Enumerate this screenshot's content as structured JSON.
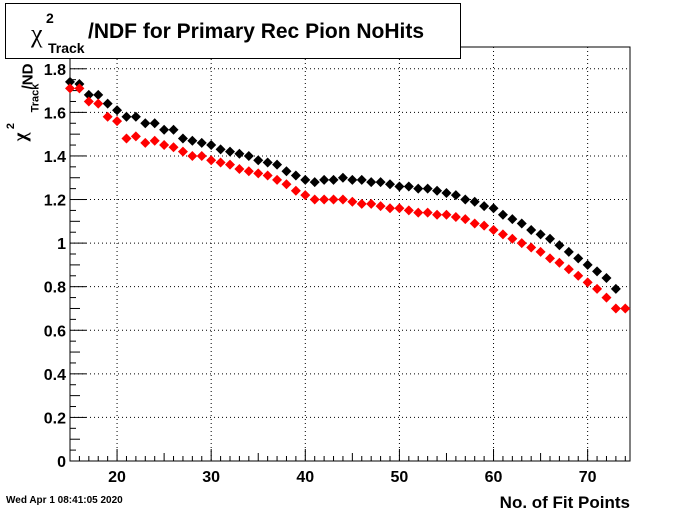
{
  "title": {
    "symbol": "χ",
    "superscript": "2",
    "subscript": "Track",
    "text": "/NDF for Primary Rec Pion NoHits"
  },
  "ylabel": {
    "symbol": "χ",
    "superscript": "2",
    "subscript": "Track",
    "text": "/ND"
  },
  "timestamp": "Wed Apr  1 08:41:05 2020",
  "chart_data": {
    "type": "scatter",
    "title": "χ²_Track/NDF for Primary Rec Pion NoHits",
    "xlabel": "No. of Fit Points",
    "ylabel": "χ²_Track/ND",
    "xlim": [
      15,
      74.5
    ],
    "ylim": [
      0,
      1.9
    ],
    "grid": true,
    "x_ticks": [
      20,
      30,
      40,
      50,
      60,
      70
    ],
    "y_ticks": [
      0,
      0.2,
      0.4,
      0.6,
      0.8,
      1,
      1.2,
      1.4,
      1.6,
      1.8
    ],
    "x_tick_labels": [
      "20",
      "30",
      "40",
      "50",
      "60",
      "70"
    ],
    "y_tick_labels": [
      "0",
      "0.2",
      "0.4",
      "0.6",
      "0.8",
      "1",
      "1.2",
      "1.4",
      "1.6",
      "1.8"
    ],
    "x": [
      15,
      16,
      17,
      18,
      19,
      20,
      21,
      22,
      23,
      24,
      25,
      26,
      27,
      28,
      29,
      30,
      31,
      32,
      33,
      34,
      35,
      36,
      37,
      38,
      39,
      40,
      41,
      42,
      43,
      44,
      45,
      46,
      47,
      48,
      49,
      50,
      51,
      52,
      53,
      54,
      55,
      56,
      57,
      58,
      59,
      60,
      61,
      62,
      63,
      64,
      65,
      66,
      67,
      68,
      69,
      70,
      71,
      72,
      73,
      74
    ],
    "series": [
      {
        "color": "#000000",
        "values": [
          1.74,
          1.73,
          1.68,
          1.68,
          1.64,
          1.61,
          1.58,
          1.58,
          1.55,
          1.55,
          1.52,
          1.52,
          1.48,
          1.47,
          1.46,
          1.45,
          1.43,
          1.42,
          1.41,
          1.4,
          1.38,
          1.37,
          1.36,
          1.33,
          1.31,
          1.29,
          1.28,
          1.29,
          1.29,
          1.3,
          1.29,
          1.29,
          1.28,
          1.28,
          1.27,
          1.26,
          1.26,
          1.25,
          1.25,
          1.24,
          1.23,
          1.22,
          1.2,
          1.19,
          1.17,
          1.16,
          1.13,
          1.11,
          1.09,
          1.06,
          1.04,
          1.02,
          0.99,
          0.96,
          0.93,
          0.9,
          0.87,
          0.84,
          0.79,
          null
        ]
      },
      {
        "color": "#ff0000",
        "values": [
          1.71,
          1.71,
          1.65,
          1.64,
          1.58,
          1.56,
          1.48,
          1.49,
          1.46,
          1.47,
          1.45,
          1.44,
          1.42,
          1.4,
          1.4,
          1.38,
          1.37,
          1.36,
          1.34,
          1.33,
          1.32,
          1.31,
          1.29,
          1.27,
          1.24,
          1.22,
          1.2,
          1.2,
          1.2,
          1.2,
          1.19,
          1.18,
          1.18,
          1.17,
          1.16,
          1.16,
          1.15,
          1.14,
          1.14,
          1.13,
          1.13,
          1.12,
          1.11,
          1.09,
          1.08,
          1.06,
          1.04,
          1.02,
          1.0,
          0.98,
          0.96,
          0.93,
          0.91,
          0.88,
          0.85,
          0.82,
          0.79,
          0.75,
          0.7,
          0.7
        ]
      }
    ]
  }
}
